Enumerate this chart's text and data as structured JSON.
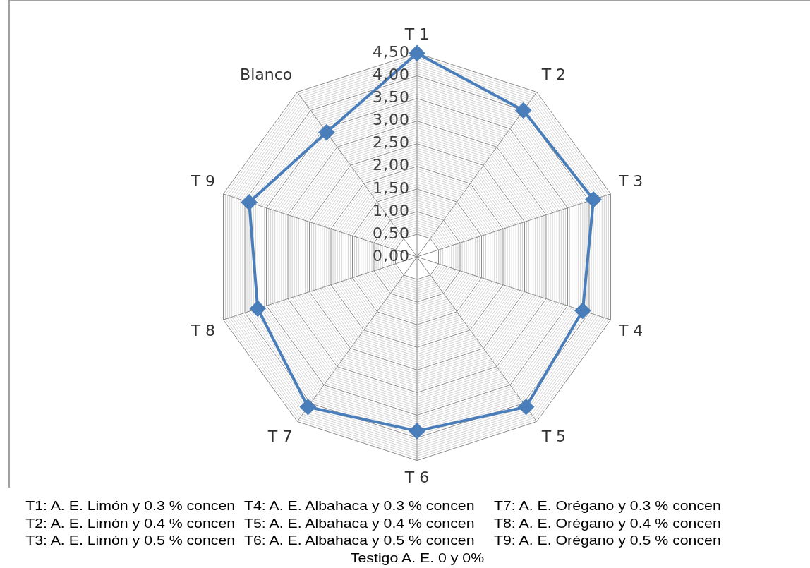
{
  "chart_data": {
    "type": "radar",
    "categories": [
      "T 1",
      "T 2",
      "T 3",
      "T 4",
      "T 5",
      "T 6",
      "T 7",
      "T 8",
      "T 9",
      "Blanco"
    ],
    "series": [
      {
        "color": "#4a7ebb",
        "values": [
          4.5,
          4.0,
          4.1,
          3.85,
          4.1,
          3.85,
          4.1,
          3.7,
          3.9,
          3.4
        ]
      }
    ],
    "ylim": [
      0,
      4.5
    ],
    "yticks": [
      {
        "value": 0,
        "label": "0,00"
      },
      {
        "value": 0.5,
        "label": "0,50"
      },
      {
        "value": 1,
        "label": "1,00"
      },
      {
        "value": 1.5,
        "label": "1,50"
      },
      {
        "value": 2,
        "label": "2,00"
      },
      {
        "value": 2.5,
        "label": "2,50"
      },
      {
        "value": 3,
        "label": "3,00"
      },
      {
        "value": 3.5,
        "label": "3,50"
      },
      {
        "value": 4,
        "label": "4,00"
      },
      {
        "value": 4.5,
        "label": "4,50"
      }
    ],
    "grid": true,
    "marker": "diamond",
    "line_style": "solid",
    "annotations": [
      "T1: A. E. Limón y 0.3 % concen",
      "T4: A. E. Albahaca y 0.3 % concen",
      "T7: A. E. Orégano y 0.3 % concen",
      "T2: A. E. Limón y 0.4 % concen",
      "T5: A. E. Albahaca y 0.4 % concen",
      "T8: A. E. Orégano y 0.4 % concen",
      "T3: A. E. Limón y 0.5 % concen",
      "T6: A. E. Albahaca y 0.5 % concen",
      "T9: A. E. Orégano y 0.5 % concen",
      "Testigo A. E. 0 y 0%"
    ]
  }
}
